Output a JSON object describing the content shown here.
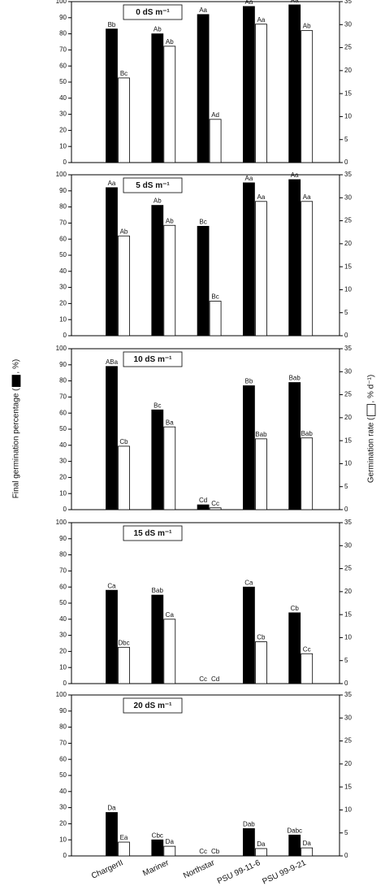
{
  "categories": [
    "ChargerII",
    "Mariner",
    "Northstar",
    "PSU 99-11-6",
    "PSU 99-9-21"
  ],
  "y_label": [
    "Final germination percentage (",
    ", %)"
  ],
  "y2_label": [
    "Germination rate (",
    ", % d⁻¹)"
  ],
  "chart_data": [
    {
      "type": "bar",
      "title": "0 dS m⁻¹",
      "ylim": [
        0,
        100
      ],
      "yticks": [
        0,
        10,
        20,
        30,
        40,
        50,
        60,
        70,
        80,
        90,
        100
      ],
      "y2lim": [
        0,
        35
      ],
      "y2ticks": [
        0,
        5,
        10,
        15,
        20,
        25,
        30,
        35
      ],
      "series": [
        {
          "name": "Final germination percentage",
          "color": "#000000",
          "values": [
            83,
            80,
            92,
            97,
            98
          ],
          "letters": [
            "Bb",
            "Ab",
            "Aa",
            "Aa",
            "Aa"
          ]
        },
        {
          "name": "Germination rate",
          "color": "#ffffff",
          "axis": "y2",
          "values": [
            18.4,
            25.3,
            9.4,
            30.1,
            28.7
          ],
          "letters": [
            "Bc",
            "Ab",
            "Ad",
            "Aa",
            "Ab"
          ]
        }
      ]
    },
    {
      "type": "bar",
      "title": "5 dS m⁻¹",
      "ylim": [
        0,
        100
      ],
      "yticks": [
        0,
        10,
        20,
        30,
        40,
        50,
        60,
        70,
        80,
        90,
        100
      ],
      "y2lim": [
        0,
        35
      ],
      "y2ticks": [
        0,
        5,
        10,
        15,
        20,
        25,
        30,
        35
      ],
      "series": [
        {
          "name": "Final germination percentage",
          "color": "#000000",
          "values": [
            92,
            81,
            68,
            95,
            97
          ],
          "letters": [
            "Aa",
            "Ab",
            "Bc",
            "Aa",
            "Aa"
          ]
        },
        {
          "name": "Germination rate",
          "color": "#ffffff",
          "axis": "y2",
          "values": [
            21.7,
            24,
            7.5,
            29.2,
            29.2
          ],
          "letters": [
            "Ab",
            "Ab",
            "Bc",
            "Aa",
            "Aa"
          ]
        }
      ]
    },
    {
      "type": "bar",
      "title": "10 dS m⁻¹",
      "ylim": [
        0,
        100
      ],
      "yticks": [
        0,
        10,
        20,
        30,
        40,
        50,
        60,
        70,
        80,
        90,
        100
      ],
      "y2lim": [
        0,
        35
      ],
      "y2ticks": [
        0,
        5,
        10,
        15,
        20,
        25,
        30,
        35
      ],
      "series": [
        {
          "name": "Final germination percentage",
          "color": "#000000",
          "values": [
            89,
            62,
            3,
            77,
            79
          ],
          "letters": [
            "ABa",
            "Bc",
            "Cd",
            "Bb",
            "Bab"
          ]
        },
        {
          "name": "Germination rate",
          "color": "#ffffff",
          "axis": "y2",
          "values": [
            13.8,
            18,
            0.4,
            15.4,
            15.6
          ],
          "letters": [
            "Cb",
            "Ba",
            "Cc",
            "Bab",
            "Bab"
          ]
        }
      ]
    },
    {
      "type": "bar",
      "title": "15 dS m⁻¹",
      "ylim": [
        0,
        100
      ],
      "yticks": [
        0,
        10,
        20,
        30,
        40,
        50,
        60,
        70,
        80,
        90,
        100
      ],
      "y2lim": [
        0,
        35
      ],
      "y2ticks": [
        0,
        5,
        10,
        15,
        20,
        25,
        30,
        35
      ],
      "series": [
        {
          "name": "Final germination percentage",
          "color": "#000000",
          "values": [
            58,
            55,
            0,
            60,
            44
          ],
          "letters": [
            "Ca",
            "Bab",
            "Cc",
            "Ca",
            "Cb"
          ]
        },
        {
          "name": "Germination rate",
          "color": "#ffffff",
          "axis": "y2",
          "values": [
            7.9,
            14,
            0,
            9.1,
            6.5
          ],
          "letters": [
            "Dbc",
            "Ca",
            "Cd",
            "Cb",
            "Cc"
          ]
        }
      ]
    },
    {
      "type": "bar",
      "title": "20 dS m⁻¹",
      "ylim": [
        0,
        100
      ],
      "yticks": [
        0,
        10,
        20,
        30,
        40,
        50,
        60,
        70,
        80,
        90,
        100
      ],
      "y2lim": [
        0,
        35
      ],
      "y2ticks": [
        0,
        5,
        10,
        15,
        20,
        25,
        30,
        35
      ],
      "series": [
        {
          "name": "Final germination percentage",
          "color": "#000000",
          "values": [
            27,
            10,
            0,
            17,
            13
          ],
          "letters": [
            "Da",
            "Cbc",
            "Cc",
            "Dab",
            "Dabc"
          ]
        },
        {
          "name": "Germination rate",
          "color": "#ffffff",
          "axis": "y2",
          "values": [
            3,
            2.1,
            0,
            1.6,
            1.75
          ],
          "letters": [
            "Ea",
            "Da",
            "Cb",
            "Da",
            "Da"
          ]
        }
      ]
    }
  ]
}
